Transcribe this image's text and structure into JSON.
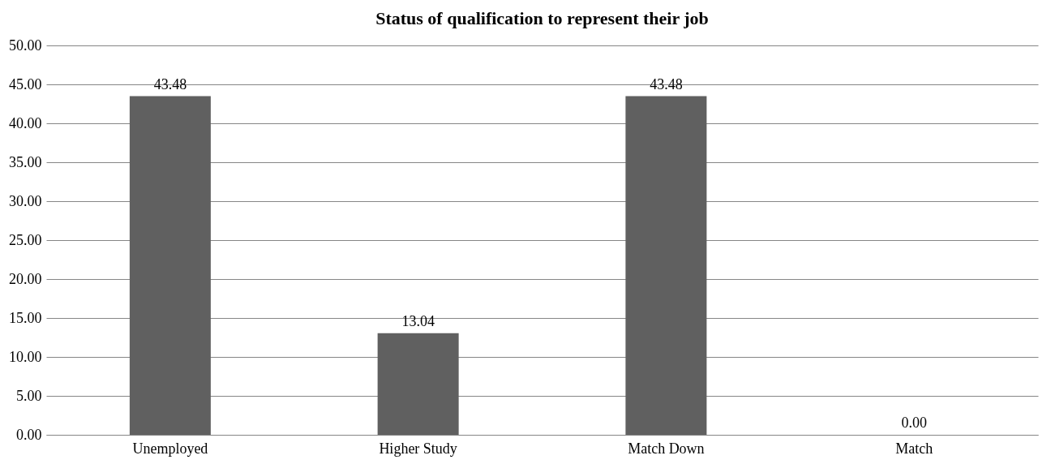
{
  "chart_data": {
    "type": "bar",
    "title": "Status of qualification to represent their job",
    "categories": [
      "Unemployed",
      "Higher Study",
      "Match Down",
      "Match"
    ],
    "values": [
      43.48,
      13.04,
      43.48,
      0
    ],
    "value_labels": [
      "43.48",
      "13.04",
      "43.48",
      "0.00"
    ],
    "color": "#606060",
    "ylim": [
      0,
      50
    ],
    "yticks": [
      {
        "value": 0,
        "label": "0.00"
      },
      {
        "value": 5,
        "label": "5.00"
      },
      {
        "value": 10,
        "label": "10.00"
      },
      {
        "value": 15,
        "label": "15.00"
      },
      {
        "value": 20,
        "label": "20.00"
      },
      {
        "value": 25,
        "label": "25.00"
      },
      {
        "value": 30,
        "label": "30.00"
      },
      {
        "value": 35,
        "label": "35.00"
      },
      {
        "value": 40,
        "label": "40.00"
      },
      {
        "value": 45,
        "label": "45.00"
      },
      {
        "value": 50,
        "label": "50.00"
      }
    ],
    "grid": "y"
  }
}
